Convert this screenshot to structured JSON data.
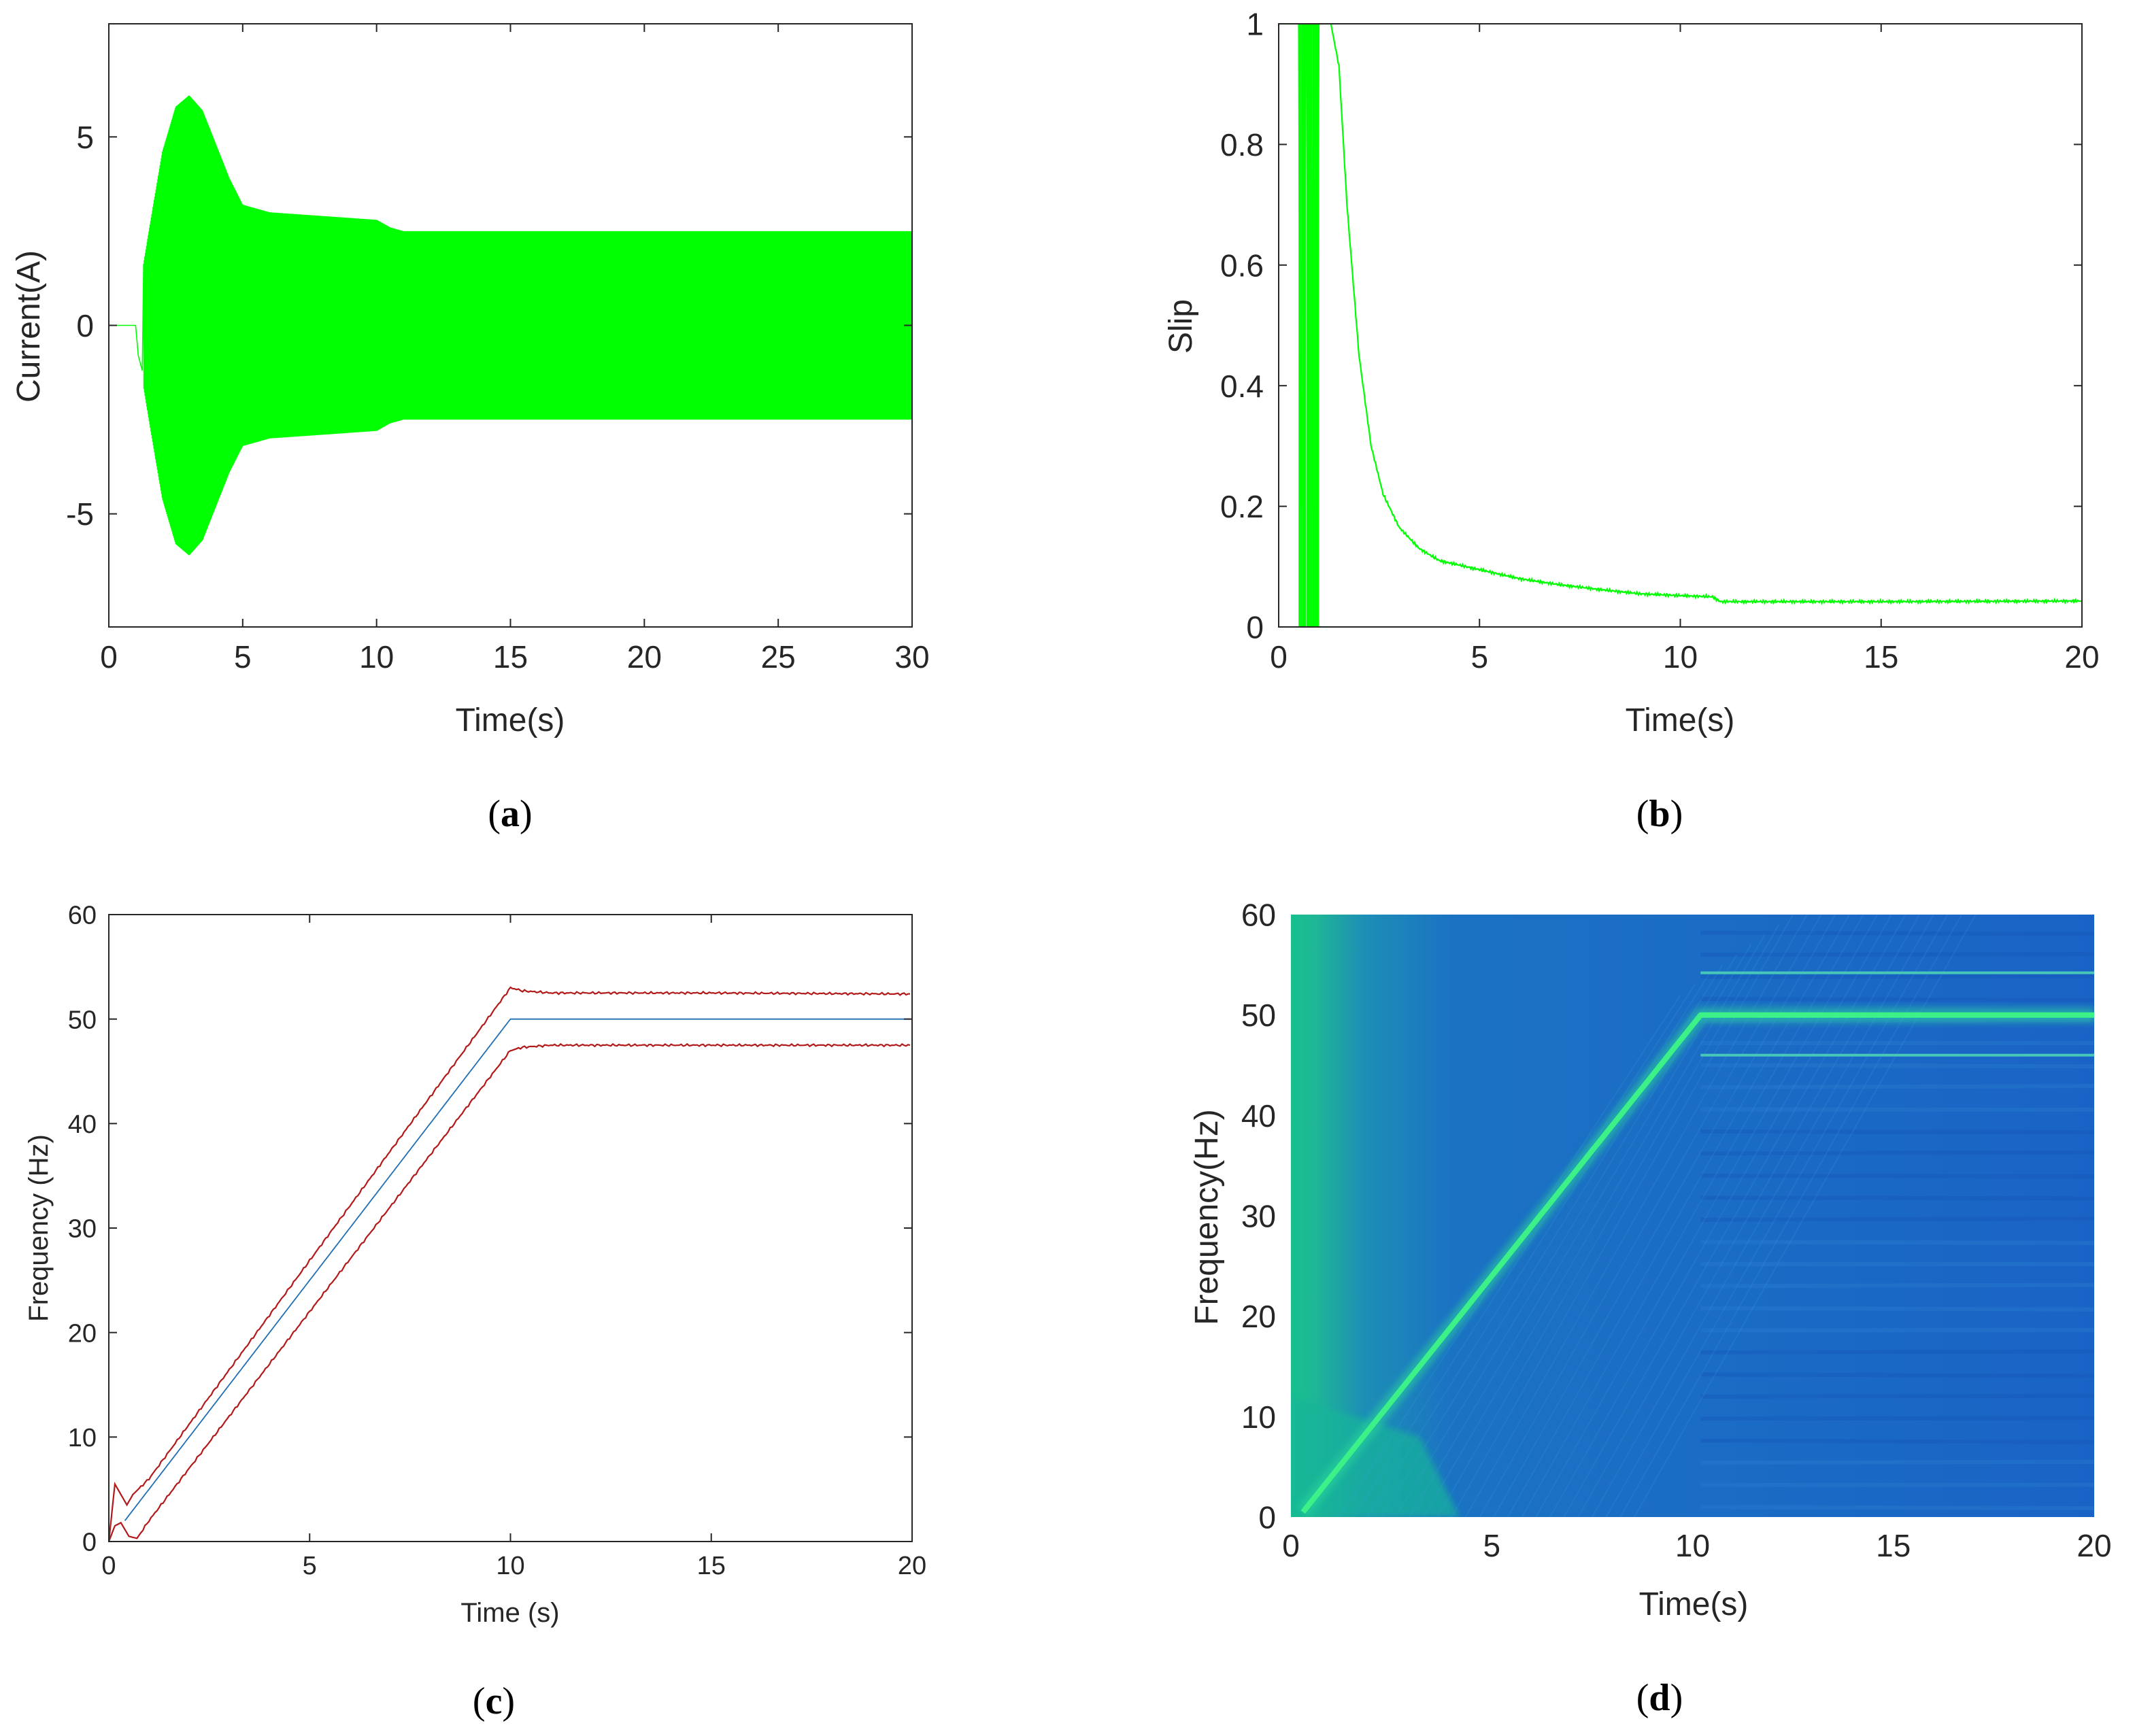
{
  "colors": {
    "green": "#00ff00",
    "blue": "#1f6fb4",
    "red": "#b21a1a",
    "axis": "#262626",
    "spec_dark": "#1a5ec6",
    "spec_mid": "#1d86b6",
    "spec_light": "#17c08e",
    "spec_ridge": "#3cf288"
  },
  "chart_data": [
    {
      "panel": "a",
      "caption_label": "a",
      "type": "line",
      "description_series": "stator current, oscillating envelope",
      "xlabel": "Time(s)",
      "ylabel": "Current(A)",
      "xlim": [
        0,
        30
      ],
      "ylim": [
        -8,
        8
      ],
      "xticks": [
        0,
        5,
        10,
        15,
        20,
        25,
        30
      ],
      "xtick_labels": [
        "0",
        "5",
        "10",
        "15",
        "20",
        "25",
        "30"
      ],
      "yticks": [
        -5,
        0,
        5
      ],
      "ytick_labels": [
        "-5",
        "0",
        "5"
      ],
      "envelope": {
        "t": [
          0,
          1.0,
          1.2,
          1.5,
          2.0,
          2.5,
          3.0,
          3.5,
          4.0,
          4.5,
          5.0,
          6.0,
          8.0,
          10.0,
          10.5,
          11.0,
          15.0,
          20.0,
          30.0
        ],
        "amp": [
          0,
          0,
          1.2,
          2.5,
          4.6,
          5.8,
          6.1,
          5.7,
          4.8,
          3.9,
          3.2,
          3.0,
          2.9,
          2.8,
          2.6,
          2.5,
          2.5,
          2.5,
          2.5
        ]
      }
    },
    {
      "panel": "b",
      "caption_label": "b",
      "type": "line",
      "xlabel": "Time(s)",
      "ylabel": "Slip",
      "xlim": [
        0,
        20
      ],
      "ylim": [
        0,
        1
      ],
      "xticks": [
        0,
        5,
        10,
        15,
        20
      ],
      "xtick_labels": [
        "0",
        "5",
        "10",
        "15",
        "20"
      ],
      "yticks": [
        0,
        0.2,
        0.4,
        0.6,
        0.8,
        1
      ],
      "ytick_labels": [
        "0",
        "0.2",
        "0.4",
        "0.6",
        "0.8",
        "1"
      ],
      "series": [
        {
          "name": "slip",
          "x": [
            0,
            0.5,
            0.55,
            0.6,
            0.65,
            0.7,
            0.75,
            0.8,
            0.85,
            0.9,
            0.95,
            1.0,
            1.1,
            1.3,
            1.5,
            1.7,
            2.0,
            2.3,
            2.6,
            3.0,
            3.5,
            4.0,
            5.0,
            6.0,
            7.0,
            8.0,
            9.0,
            10.0,
            10.8,
            11.0,
            12.0,
            15.0,
            20.0
          ],
          "y": [
            1.0,
            1.0,
            0.0,
            1.0,
            0.96,
            1.0,
            0.0,
            1.0,
            0.0,
            1.0,
            0.0,
            1.0,
            1.0,
            1.0,
            0.93,
            0.7,
            0.45,
            0.3,
            0.22,
            0.165,
            0.13,
            0.11,
            0.095,
            0.08,
            0.07,
            0.062,
            0.055,
            0.052,
            0.05,
            0.042,
            0.042,
            0.042,
            0.043
          ]
        }
      ]
    },
    {
      "panel": "c",
      "caption_label": "c",
      "type": "line",
      "xlabel": "Time (s)",
      "ylabel": "Frequency (Hz)",
      "xlim": [
        0,
        20
      ],
      "ylim": [
        0,
        60
      ],
      "xticks": [
        0,
        5,
        10,
        15,
        20
      ],
      "xtick_labels": [
        "0",
        "5",
        "10",
        "15",
        "20"
      ],
      "yticks": [
        0,
        10,
        20,
        30,
        40,
        50,
        60
      ],
      "ytick_labels": [
        "0",
        "10",
        "20",
        "30",
        "40",
        "50",
        "60"
      ],
      "series": [
        {
          "name": "supply frequency",
          "color": "blue",
          "x": [
            0.4,
            10,
            20
          ],
          "y": [
            2.0,
            50.0,
            50.0
          ]
        },
        {
          "name": "upper sideband",
          "color": "red",
          "x": [
            0,
            0.15,
            0.3,
            0.45,
            0.6,
            1.0,
            10,
            10.3,
            11,
            15,
            20
          ],
          "y": [
            0,
            5.5,
            4.5,
            3.5,
            4.5,
            6.0,
            53.0,
            52.7,
            52.5,
            52.5,
            52.4
          ]
        },
        {
          "name": "lower sideband",
          "color": "red",
          "x": [
            0,
            0.15,
            0.3,
            0.5,
            0.7,
            1.0,
            10,
            10.3,
            11,
            15,
            20
          ],
          "y": [
            0,
            1.5,
            1.8,
            0.5,
            0.3,
            2.0,
            47.0,
            47.3,
            47.5,
            47.5,
            47.5
          ]
        }
      ]
    },
    {
      "panel": "d",
      "caption_label": "d",
      "type": "heatmap",
      "description_series": "time-frequency spectrogram",
      "xlabel": "Time(s)",
      "ylabel": "Frequency(Hz)",
      "xlim": [
        0,
        20
      ],
      "ylim": [
        0,
        60
      ],
      "xticks": [
        0,
        5,
        10,
        15,
        20
      ],
      "xtick_labels": [
        "0",
        "5",
        "10",
        "15",
        "20"
      ],
      "yticks": [
        0,
        10,
        20,
        30,
        40,
        50,
        60
      ],
      "ytick_labels": [
        "0",
        "10",
        "20",
        "30",
        "40",
        "50",
        "60"
      ],
      "ridges": [
        {
          "name": "fundamental",
          "x": [
            0.3,
            10.2,
            20
          ],
          "y": [
            0.5,
            50.0,
            50.0
          ],
          "strength": "strong"
        },
        {
          "name": "upper sideband",
          "x": [
            10.2,
            20
          ],
          "y": [
            54.2,
            54.2
          ],
          "strength": "weak"
        },
        {
          "name": "lower sideband",
          "x": [
            10.2,
            20
          ],
          "y": [
            46.0,
            46.0
          ],
          "strength": "weak"
        }
      ]
    }
  ]
}
